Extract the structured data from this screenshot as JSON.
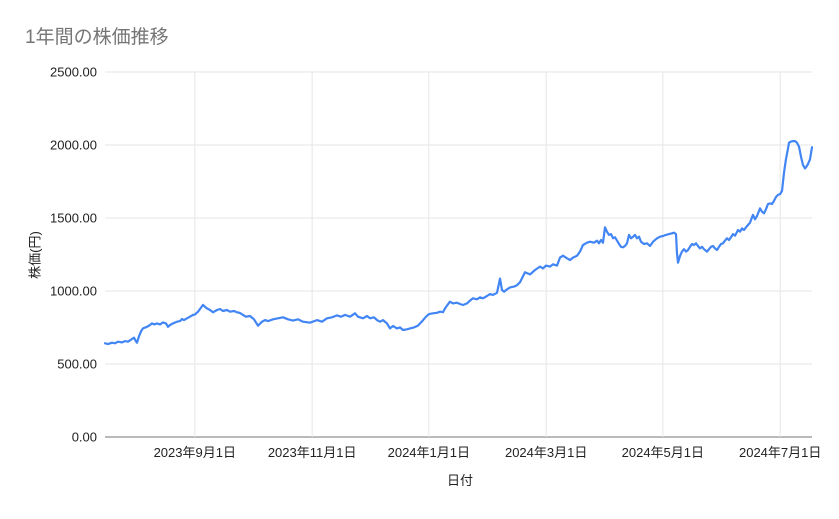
{
  "chart": {
    "title": "1年間の株価推移",
    "x_axis_title": "日付",
    "y_axis_title": "株価(円)",
    "colors": {
      "line": "#4285f4",
      "grid": "#e6e6e6",
      "axis_baseline": "#757575",
      "title_text": "#757575",
      "tick_text": "#222222",
      "background": "#ffffff"
    }
  },
  "chart_data": {
    "type": "line",
    "title": "1年間の株価推移",
    "xlabel": "日付",
    "ylabel": "株価(円)",
    "ylim": [
      0,
      2500
    ],
    "grid": true,
    "legend_position": "none",
    "y_ticks": [
      0,
      500,
      1000,
      1500,
      2000,
      2500
    ],
    "y_tick_labels": [
      "0.00",
      "500.00",
      "1000.00",
      "1500.00",
      "2000.00",
      "2500.00"
    ],
    "x_ticks": [
      {
        "pos": 0.127,
        "label": "2023年9月1日"
      },
      {
        "pos": 0.293,
        "label": "2023年11月1日"
      },
      {
        "pos": 0.458,
        "label": "2024年1月1日"
      },
      {
        "pos": 0.624,
        "label": "2024年3月1日"
      },
      {
        "pos": 0.789,
        "label": "2024年5月1日"
      },
      {
        "pos": 0.955,
        "label": "2024年7月1日"
      }
    ],
    "series": [
      {
        "color": "#4285f4",
        "points": [
          [
            0,
            642
          ],
          [
            0.0042,
            636
          ],
          [
            0.0099,
            646
          ],
          [
            0.0141,
            642
          ],
          [
            0.0184,
            653
          ],
          [
            0.024,
            648
          ],
          [
            0.0283,
            657
          ],
          [
            0.0325,
            653
          ],
          [
            0.0382,
            671
          ],
          [
            0.041,
            680
          ],
          [
            0.0438,
            655
          ],
          [
            0.0453,
            646
          ],
          [
            0.0481,
            690
          ],
          [
            0.0509,
            724
          ],
          [
            0.0538,
            744
          ],
          [
            0.0594,
            755
          ],
          [
            0.0636,
            767
          ],
          [
            0.0665,
            778
          ],
          [
            0.0693,
            771
          ],
          [
            0.0735,
            778
          ],
          [
            0.0778,
            771
          ],
          [
            0.082,
            785
          ],
          [
            0.0863,
            778
          ],
          [
            0.0891,
            755
          ],
          [
            0.0919,
            767
          ],
          [
            0.0962,
            778
          ],
          [
            0.1018,
            790
          ],
          [
            0.1061,
            794
          ],
          [
            0.1089,
            808
          ],
          [
            0.1117,
            801
          ],
          [
            0.116,
            813
          ],
          [
            0.1202,
            824
          ],
          [
            0.1245,
            836
          ],
          [
            0.1273,
            840
          ],
          [
            0.1315,
            858
          ],
          [
            0.1344,
            877
          ],
          [
            0.1386,
            905
          ],
          [
            0.1414,
            892
          ],
          [
            0.1443,
            881
          ],
          [
            0.1485,
            870
          ],
          [
            0.1527,
            854
          ],
          [
            0.1584,
            870
          ],
          [
            0.1627,
            877
          ],
          [
            0.1669,
            863
          ],
          [
            0.1726,
            870
          ],
          [
            0.1768,
            858
          ],
          [
            0.1825,
            863
          ],
          [
            0.1867,
            854
          ],
          [
            0.1909,
            849
          ],
          [
            0.1952,
            836
          ],
          [
            0.1994,
            824
          ],
          [
            0.2051,
            829
          ],
          [
            0.2107,
            806
          ],
          [
            0.2164,
            762
          ],
          [
            0.2221,
            790
          ],
          [
            0.2263,
            801
          ],
          [
            0.2306,
            794
          ],
          [
            0.2376,
            806
          ],
          [
            0.2447,
            813
          ],
          [
            0.2518,
            820
          ],
          [
            0.2588,
            806
          ],
          [
            0.2659,
            797
          ],
          [
            0.273,
            806
          ],
          [
            0.2801,
            790
          ],
          [
            0.29,
            783
          ],
          [
            0.2999,
            801
          ],
          [
            0.3069,
            790
          ],
          [
            0.314,
            813
          ],
          [
            0.3211,
            820
          ],
          [
            0.3281,
            833
          ],
          [
            0.3338,
            824
          ],
          [
            0.3395,
            836
          ],
          [
            0.3465,
            824
          ],
          [
            0.3536,
            847
          ],
          [
            0.3578,
            824
          ],
          [
            0.3649,
            813
          ],
          [
            0.3706,
            829
          ],
          [
            0.3748,
            813
          ],
          [
            0.3805,
            820
          ],
          [
            0.3847,
            801
          ],
          [
            0.389,
            790
          ],
          [
            0.3932,
            801
          ],
          [
            0.3989,
            778
          ],
          [
            0.4031,
            744
          ],
          [
            0.4074,
            760
          ],
          [
            0.413,
            744
          ],
          [
            0.4173,
            751
          ],
          [
            0.4215,
            733
          ],
          [
            0.4272,
            738
          ],
          [
            0.4314,
            744
          ],
          [
            0.4371,
            751
          ],
          [
            0.4427,
            763
          ],
          [
            0.4498,
            800
          ],
          [
            0.454,
            824
          ],
          [
            0.4583,
            842
          ],
          [
            0.4639,
            847
          ],
          [
            0.4696,
            851
          ],
          [
            0.4738,
            858
          ],
          [
            0.4781,
            855
          ],
          [
            0.4809,
            881
          ],
          [
            0.4837,
            900
          ],
          [
            0.4879,
            927
          ],
          [
            0.4922,
            915
          ],
          [
            0.4979,
            920
          ],
          [
            0.5021,
            911
          ],
          [
            0.5064,
            904
          ],
          [
            0.512,
            915
          ],
          [
            0.5163,
            934
          ],
          [
            0.5205,
            950
          ],
          [
            0.5262,
            943
          ],
          [
            0.5304,
            957
          ],
          [
            0.5347,
            950
          ],
          [
            0.5403,
            966
          ],
          [
            0.5446,
            979
          ],
          [
            0.5488,
            973
          ],
          [
            0.5545,
            988
          ],
          [
            0.5587,
            1085
          ],
          [
            0.5615,
            1007
          ],
          [
            0.5644,
            995
          ],
          [
            0.5686,
            1011
          ],
          [
            0.5729,
            1025
          ],
          [
            0.5785,
            1030
          ],
          [
            0.5827,
            1040
          ],
          [
            0.587,
            1060
          ],
          [
            0.5941,
            1128
          ],
          [
            0.6011,
            1114
          ],
          [
            0.6082,
            1144
          ],
          [
            0.6153,
            1167
          ],
          [
            0.6195,
            1155
          ],
          [
            0.6238,
            1174
          ],
          [
            0.6294,
            1167
          ],
          [
            0.6337,
            1183
          ],
          [
            0.6393,
            1174
          ],
          [
            0.6436,
            1229
          ],
          [
            0.6478,
            1242
          ],
          [
            0.6535,
            1224
          ],
          [
            0.6577,
            1212
          ],
          [
            0.662,
            1229
          ],
          [
            0.6676,
            1242
          ],
          [
            0.6719,
            1270
          ],
          [
            0.6761,
            1315
          ],
          [
            0.6817,
            1331
          ],
          [
            0.686,
            1338
          ],
          [
            0.6917,
            1331
          ],
          [
            0.6959,
            1345
          ],
          [
            0.6987,
            1327
          ],
          [
            0.7016,
            1349
          ],
          [
            0.7044,
            1331
          ],
          [
            0.7072,
            1436
          ],
          [
            0.7101,
            1406
          ],
          [
            0.7129,
            1384
          ],
          [
            0.7157,
            1390
          ],
          [
            0.7186,
            1361
          ],
          [
            0.7214,
            1368
          ],
          [
            0.7242,
            1345
          ],
          [
            0.727,
            1322
          ],
          [
            0.7299,
            1303
          ],
          [
            0.7327,
            1299
          ],
          [
            0.7355,
            1308
          ],
          [
            0.7384,
            1327
          ],
          [
            0.7412,
            1384
          ],
          [
            0.744,
            1361
          ],
          [
            0.7469,
            1372
          ],
          [
            0.7497,
            1384
          ],
          [
            0.7525,
            1361
          ],
          [
            0.7553,
            1372
          ],
          [
            0.7582,
            1338
          ],
          [
            0.7624,
            1322
          ],
          [
            0.7667,
            1327
          ],
          [
            0.7709,
            1308
          ],
          [
            0.7751,
            1338
          ],
          [
            0.7808,
            1361
          ],
          [
            0.785,
            1372
          ],
          [
            0.7893,
            1377
          ],
          [
            0.7935,
            1384
          ],
          [
            0.7977,
            1390
          ],
          [
            0.802,
            1395
          ],
          [
            0.8048,
            1399
          ],
          [
            0.8076,
            1390
          ],
          [
            0.8091,
            1258
          ],
          [
            0.8105,
            1194
          ],
          [
            0.8133,
            1240
          ],
          [
            0.8161,
            1270
          ],
          [
            0.819,
            1286
          ],
          [
            0.8218,
            1270
          ],
          [
            0.8246,
            1281
          ],
          [
            0.8274,
            1303
          ],
          [
            0.8303,
            1322
          ],
          [
            0.8331,
            1315
          ],
          [
            0.8359,
            1327
          ],
          [
            0.8388,
            1308
          ],
          [
            0.8416,
            1292
          ],
          [
            0.8444,
            1303
          ],
          [
            0.8472,
            1286
          ],
          [
            0.8515,
            1270
          ],
          [
            0.8543,
            1286
          ],
          [
            0.8571,
            1303
          ],
          [
            0.86,
            1308
          ],
          [
            0.8628,
            1292
          ],
          [
            0.8656,
            1281
          ],
          [
            0.8684,
            1303
          ],
          [
            0.8713,
            1322
          ],
          [
            0.8741,
            1327
          ],
          [
            0.8769,
            1345
          ],
          [
            0.8798,
            1361
          ],
          [
            0.8826,
            1349
          ],
          [
            0.8854,
            1368
          ],
          [
            0.8882,
            1390
          ],
          [
            0.8911,
            1379
          ],
          [
            0.8953,
            1418
          ],
          [
            0.8982,
            1406
          ],
          [
            0.901,
            1429
          ],
          [
            0.9038,
            1418
          ],
          [
            0.9067,
            1436
          ],
          [
            0.9095,
            1452
          ],
          [
            0.9123,
            1468
          ],
          [
            0.9151,
            1505
          ],
          [
            0.9166,
            1521
          ],
          [
            0.9194,
            1491
          ],
          [
            0.9222,
            1514
          ],
          [
            0.9251,
            1548
          ],
          [
            0.9265,
            1566
          ],
          [
            0.9293,
            1543
          ],
          [
            0.9321,
            1532
          ],
          [
            0.935,
            1560
          ],
          [
            0.9378,
            1596
          ],
          [
            0.9406,
            1600
          ],
          [
            0.9434,
            1596
          ],
          [
            0.9463,
            1618
          ],
          [
            0.9491,
            1644
          ],
          [
            0.9519,
            1658
          ],
          [
            0.9547,
            1664
          ],
          [
            0.9576,
            1685
          ],
          [
            0.9604,
            1810
          ],
          [
            0.9632,
            1905
          ],
          [
            0.966,
            1975
          ],
          [
            0.9675,
            2016
          ],
          [
            0.9703,
            2023
          ],
          [
            0.9731,
            2027
          ],
          [
            0.9759,
            2027
          ],
          [
            0.9788,
            2016
          ],
          [
            0.9816,
            1989
          ],
          [
            0.9844,
            1920
          ],
          [
            0.9873,
            1863
          ],
          [
            0.9901,
            1840
          ],
          [
            0.9915,
            1847
          ],
          [
            0.9943,
            1870
          ],
          [
            0.9972,
            1902
          ],
          [
            0.9986,
            1943
          ],
          [
            1,
            1985
          ]
        ]
      }
    ]
  }
}
